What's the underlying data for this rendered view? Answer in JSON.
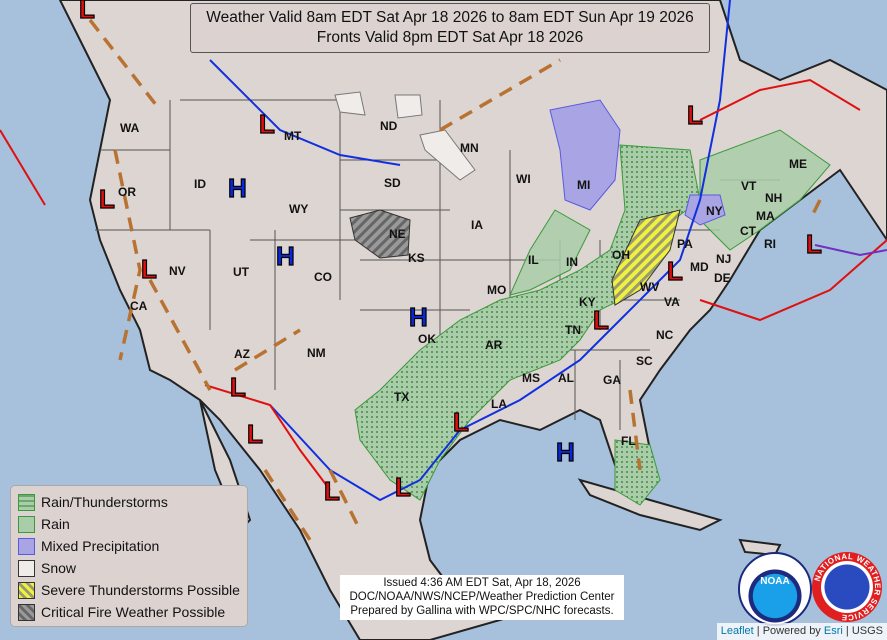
{
  "header": {
    "line1": "Weather Valid 8am EDT Sat Apr 18 2026 to 8am EDT Sun Apr 19 2026",
    "line2": "Fronts Valid 8pm EDT Sat Apr 18 2026"
  },
  "legend": {
    "items": [
      {
        "label": "Rain/Thunderstorms",
        "color": "#8fbf8f"
      },
      {
        "label": "Rain",
        "color": "#a9cca9"
      },
      {
        "label": "Mixed Precipitation",
        "color": "#a9a4e3"
      },
      {
        "label": "Snow",
        "color": "#f0ecea"
      },
      {
        "label": "Severe Thunderstorms Possible",
        "color": "#f0f040"
      },
      {
        "label": "Critical Fire Weather Possible",
        "color": "#888888"
      }
    ]
  },
  "states": [
    "WA",
    "OR",
    "ID",
    "MT",
    "WY",
    "ND",
    "MN",
    "SD",
    "NE",
    "IA",
    "WI",
    "MI",
    "IL",
    "IN",
    "OH",
    "PA",
    "NY",
    "VT",
    "NH",
    "ME",
    "MA",
    "CT",
    "RI",
    "NJ",
    "DE",
    "MD",
    "VA",
    "WV",
    "KY",
    "TN",
    "NC",
    "SC",
    "GA",
    "AL",
    "MS",
    "LA",
    "AR",
    "MO",
    "KS",
    "OK",
    "TX",
    "NM",
    "CO",
    "UT",
    "NV",
    "CA",
    "AZ",
    "FL"
  ],
  "pressure_centers": {
    "high": "H",
    "low": "L",
    "high_color": "#0a28d8",
    "low_color": "#e01010"
  },
  "issued": {
    "line1": "Issued  4:36 AM EDT  Sat, Apr 18, 2026",
    "line2": "DOC/NOAA/NWS/NCEP/Weather Prediction Center",
    "line3": "Prepared by Gallina with WPC/SPC/NHC forecasts."
  },
  "logos": {
    "noaa": "NOAA",
    "nws": "NATIONAL WEATHER SERVICE"
  },
  "attribution": {
    "leaflet": "Leaflet",
    "powered": "Powered by",
    "esri": "Esri",
    "usgs": "USGS",
    "sep": "|"
  }
}
